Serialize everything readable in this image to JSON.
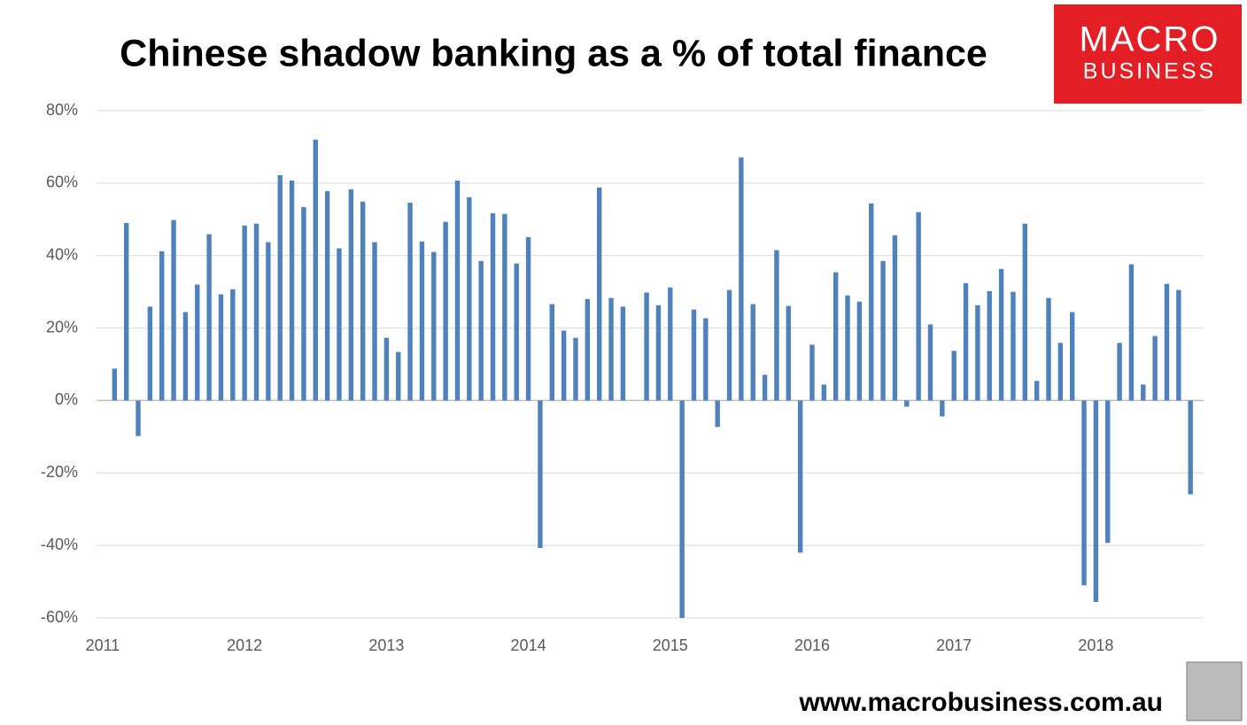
{
  "chart_data": {
    "type": "bar",
    "title": "Chinese shadow banking as a % of total finance",
    "categories": [
      "2011",
      null,
      null,
      null,
      null,
      null,
      null,
      null,
      null,
      null,
      null,
      null,
      "2012",
      null,
      null,
      null,
      null,
      null,
      null,
      null,
      null,
      null,
      null,
      null,
      "2013",
      null,
      null,
      null,
      null,
      null,
      null,
      null,
      null,
      null,
      null,
      null,
      "2014",
      null,
      null,
      null,
      null,
      null,
      null,
      null,
      null,
      null,
      null,
      null,
      "2015",
      null,
      null,
      null,
      null,
      null,
      null,
      null,
      null,
      null,
      null,
      null,
      "2016",
      null,
      null,
      null,
      null,
      null,
      null,
      null,
      null,
      null,
      null,
      null,
      "2017",
      null,
      null,
      null,
      null,
      null,
      null,
      null,
      null,
      null,
      null,
      null,
      "2018",
      null,
      null,
      null,
      null,
      null,
      null,
      null,
      null
    ],
    "values": [
      null,
      8.8,
      49,
      -9.8,
      25.9,
      41.2,
      49.8,
      24.4,
      32,
      45.9,
      29.3,
      30.7,
      48.3,
      48.8,
      43.7,
      62.2,
      60.7,
      53.4,
      72,
      57.8,
      42,
      58.3,
      54.9,
      43.7,
      17.3,
      13.4,
      54.6,
      43.9,
      41,
      49.3,
      60.7,
      56.1,
      38.5,
      51.7,
      51.5,
      37.8,
      45.1,
      -40.7,
      26.6,
      19.3,
      17.3,
      28,
      58.8,
      28.3,
      25.9,
      0,
      29.8,
      26.3,
      31.2,
      -60,
      25.1,
      22.7,
      -7.3,
      30.5,
      67.1,
      26.6,
      7.1,
      41.5,
      26.1,
      -42,
      15.4,
      4.4,
      35.4,
      29,
      27.3,
      54.4,
      38.5,
      45.6,
      -1.7,
      52,
      21,
      -4.4,
      13.7,
      32.4,
      26.3,
      30.2,
      36.3,
      30,
      48.8,
      5.4,
      28.3,
      15.9,
      24.4,
      -51,
      -55.6,
      -39.3,
      15.9,
      37.6,
      4.4,
      17.8,
      32.2,
      30.5,
      -25.9
    ],
    "color": "#4f81bd",
    "ylim": [
      -60,
      80
    ],
    "yticks": [
      {
        "value": -60,
        "label": "-60%"
      },
      {
        "value": -40,
        "label": "-40%"
      },
      {
        "value": -20,
        "label": "-20%"
      },
      {
        "value": 0,
        "label": "0%"
      },
      {
        "value": 20,
        "label": "20%"
      },
      {
        "value": 40,
        "label": "40%"
      },
      {
        "value": 60,
        "label": "60%"
      },
      {
        "value": 80,
        "label": "80%"
      }
    ],
    "grid": true
  },
  "logo": {
    "line1": "MACRO",
    "line2": "BUSINESS"
  },
  "website": "www.macrobusiness.com.au"
}
